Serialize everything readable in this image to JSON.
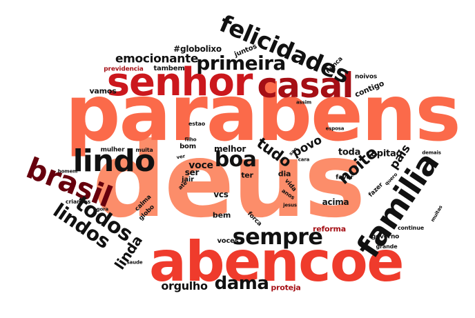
{
  "words": {
    "deus": "deus",
    "parabens": "parabens",
    "abencoe": "abencoe",
    "senhor": "senhor",
    "casal": "casal",
    "familia": "familia",
    "lindo": "lindo",
    "brasil": "brasil",
    "felicidades": "felicidades",
    "sempre": "sempre",
    "todos": "todos",
    "lindos": "lindos",
    "boa": "boa",
    "primeira": "primeira",
    "dama": "dama",
    "noite": "noite",
    "tudo": "tudo",
    "linda": "linda",
    "emocionante": "emocionante",
    "pais": "pais",
    "povo": "povo",
    "orgulho": "orgulho",
    "voce": "voce",
    "toda": "toda",
    "capitao": "capitao",
    "globolixo": "#globolixo",
    "tambem": "tambem",
    "previdencia": "previdencia",
    "vamos": "vamos",
    "contigo": "contigo",
    "noivos": "noivos",
    "nunca": "nunca",
    "juntos": "juntos",
    "assim": "assim",
    "estao": "estao",
    "filho": "filho",
    "esposa": "esposa",
    "mulher": "mulher",
    "muita": "muita",
    "bom": "bom",
    "ver": "ver",
    "melhor": "melhor",
    "sao": "sao",
    "cara": "cara",
    "demais": "demais",
    "homem": "homem",
    "ser": "ser",
    "jair": "jair",
    "ate": "ate",
    "ter": "ter",
    "dia": "dia",
    "vida": "vida",
    "anos": "anos",
    "jesus": "jesus",
    "favor": "favor",
    "quero": "quero",
    "fazer": "fazer",
    "criancas": "criancas",
    "vcs": "vcs",
    "acima": "acima",
    "agora": "agora",
    "calma": "calma",
    "globo": "globo",
    "bem": "bem",
    "forca": "forca",
    "muitas": "muitas",
    "reforma": "reforma",
    "continue": "continue",
    "governo": "governo",
    "grande": "grande",
    "voces": "voces",
    "saude": "saude",
    "proteja": "proteja"
  },
  "colors": {
    "light_salmon": "#fc8d6a",
    "salmon": "#fb6a4a",
    "orange_red": "#ef3b2c",
    "red": "#cb181d",
    "dark_red": "#a50f15",
    "maroon": "#67000d",
    "black": "#111111",
    "background": "#ffffff"
  }
}
